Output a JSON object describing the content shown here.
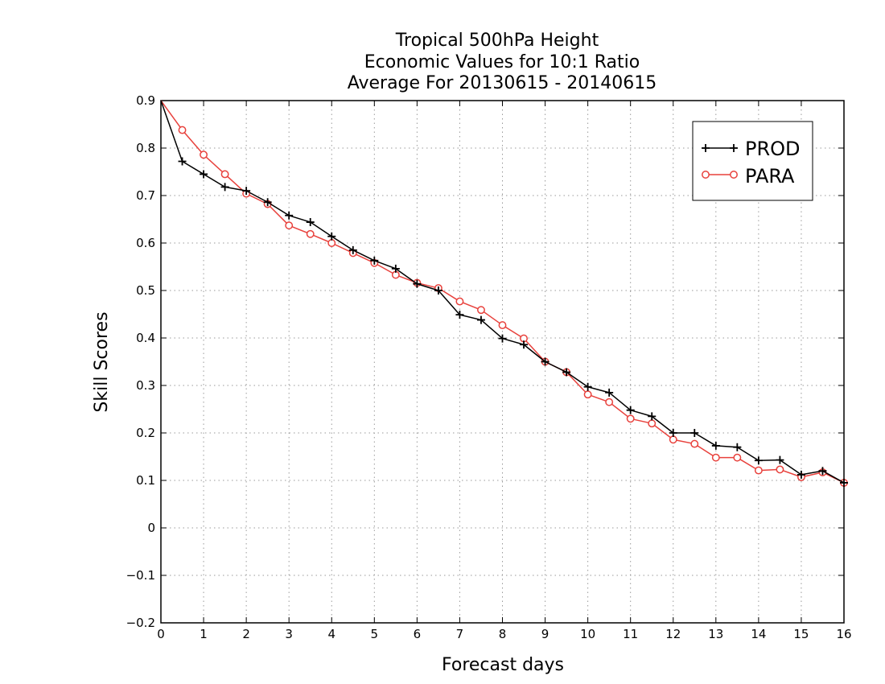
{
  "chart_data": {
    "type": "line",
    "title_lines": [
      "Tropical 500hPa Height",
      "Economic Values for 10:1 Ratio",
      "Average For 20130615 - 20140615"
    ],
    "xlabel": "Forecast days",
    "ylabel": "Skill Scores",
    "xlim": [
      0,
      16
    ],
    "ylim": [
      -0.2,
      0.9
    ],
    "x_ticks": [
      0,
      1,
      2,
      3,
      4,
      5,
      6,
      7,
      8,
      9,
      10,
      11,
      12,
      13,
      14,
      15,
      16
    ],
    "x_tick_labels": [
      "0",
      "1",
      "2",
      "3",
      "4",
      "5",
      "6",
      "7",
      "8",
      "9",
      "10",
      "11",
      "12",
      "13",
      "14",
      "15",
      "16"
    ],
    "y_ticks": [
      -0.2,
      -0.1,
      0,
      0.1,
      0.2,
      0.3,
      0.4,
      0.5,
      0.6,
      0.7,
      0.8,
      0.9
    ],
    "y_tick_labels": [
      "−0.2",
      "−0.1",
      "0",
      "0.1",
      "0.2",
      "0.3",
      "0.4",
      "0.5",
      "0.6",
      "0.7",
      "0.8",
      "0.9"
    ],
    "grid": true,
    "legend_position": "top-right",
    "x": [
      0,
      0.5,
      1,
      1.5,
      2,
      2.5,
      3,
      3.5,
      4,
      4.5,
      5,
      5.5,
      6,
      6.5,
      7,
      7.5,
      8,
      8.5,
      9,
      9.5,
      10,
      10.5,
      11,
      11.5,
      12,
      12.5,
      13,
      13.5,
      14,
      14.5,
      15,
      15.5,
      16
    ],
    "series": [
      {
        "name": "PROD",
        "color": "#000000",
        "marker": "plus",
        "values": [
          0.9,
          0.772,
          0.745,
          0.718,
          0.71,
          0.686,
          0.658,
          0.644,
          0.614,
          0.585,
          0.563,
          0.546,
          0.514,
          0.5,
          0.449,
          0.438,
          0.399,
          0.386,
          0.35,
          0.328,
          0.297,
          0.285,
          0.248,
          0.235,
          0.2,
          0.2,
          0.173,
          0.17,
          0.142,
          0.143,
          0.112,
          0.12,
          0.095
        ]
      },
      {
        "name": "PARA",
        "color": "#e8413c",
        "marker": "circle",
        "values": [
          0.9,
          0.838,
          0.786,
          0.745,
          0.704,
          0.682,
          0.637,
          0.619,
          0.6,
          0.579,
          0.558,
          0.533,
          0.516,
          0.505,
          0.477,
          0.459,
          0.427,
          0.399,
          0.35,
          0.328,
          0.281,
          0.265,
          0.23,
          0.22,
          0.186,
          0.177,
          0.148,
          0.148,
          0.121,
          0.123,
          0.107,
          0.117,
          0.095
        ]
      }
    ]
  }
}
